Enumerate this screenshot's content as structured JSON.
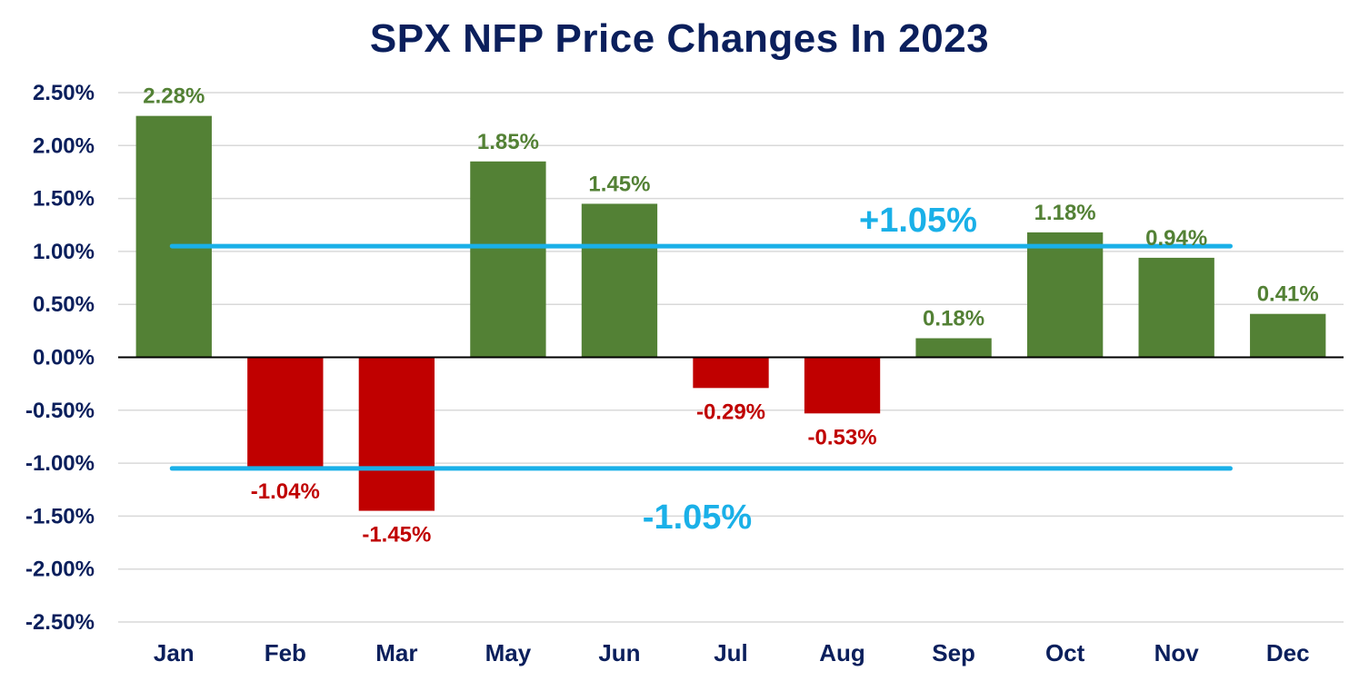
{
  "chart_data": {
    "type": "bar",
    "title": "SPX NFP Price Changes In 2023",
    "xlabel": "",
    "ylabel": "",
    "categories": [
      "Jan",
      "Feb",
      "Mar",
      "May",
      "Jun",
      "Jul",
      "Aug",
      "Sep",
      "Oct",
      "Nov",
      "Dec"
    ],
    "values": [
      2.28,
      -1.04,
      -1.45,
      1.85,
      1.45,
      -0.29,
      -0.53,
      0.18,
      1.18,
      0.94,
      0.41
    ],
    "data_labels": [
      "2.28%",
      "-1.04%",
      "-1.45%",
      "1.85%",
      "1.45%",
      "-0.29%",
      "-0.53%",
      "0.18%",
      "1.18%",
      "0.94%",
      "0.41%"
    ],
    "ylim": [
      -2.5,
      2.5
    ],
    "yticks": [
      2.5,
      2.0,
      1.5,
      1.0,
      0.5,
      0.0,
      -0.5,
      -1.0,
      -1.5,
      -2.0,
      -2.5
    ],
    "ytick_labels": [
      "2.50%",
      "2.00%",
      "1.50%",
      "1.00%",
      "0.50%",
      "0.00%",
      "-0.50%",
      "-1.00%",
      "-1.50%",
      "-2.00%",
      "-2.50%"
    ],
    "grid": true,
    "reference_lines": [
      {
        "value": 1.05,
        "label": "+1.05%"
      },
      {
        "value": -1.05,
        "label": "-1.05%"
      }
    ],
    "colors": {
      "positive": "#538135",
      "negative": "#c00000",
      "reference": "#1ab0e8",
      "title": "#0b1f5c",
      "grid": "#d9d9d9"
    }
  }
}
